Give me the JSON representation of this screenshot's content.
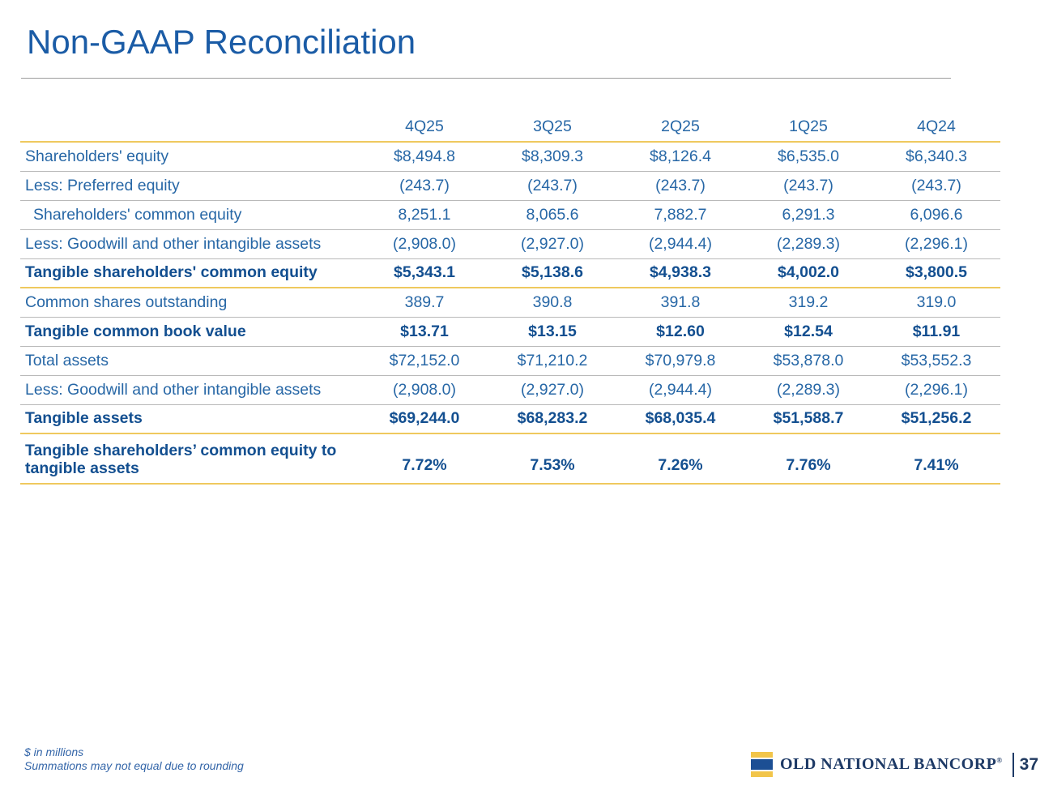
{
  "slide": {
    "title": "Non-GAAP Reconciliation",
    "page_number": "37",
    "footnote_line1": "$ in millions",
    "footnote_line2": "Summations may not equal due to rounding",
    "logo_text": "OLD NATIONAL BANCORP",
    "logo_reg_mark": "®"
  },
  "colors": {
    "title_blue": "#1b5ca6",
    "table_text_blue": "#2767a6",
    "table_bold_blue": "#134f90",
    "accent_gold_rule": "#efc95e",
    "gray_rule": "#b9b9b9",
    "brand_navy": "#1e3a66",
    "logo_gold": "#f2c54a",
    "logo_blue": "#1c4f94"
  },
  "chart_data": {
    "type": "table",
    "title": "Non-GAAP Reconciliation",
    "label_header": "",
    "columns": [
      "4Q25",
      "3Q25",
      "2Q25",
      "1Q25",
      "4Q24"
    ],
    "rows": [
      {
        "label": "Shareholders' equity",
        "values": [
          "$8,494.8",
          "$8,309.3",
          "$8,126.4",
          "$6,535.0",
          "$6,340.3"
        ],
        "bold": false,
        "indent": false,
        "rule": "gray",
        "tall": false
      },
      {
        "label": "Less: Preferred equity",
        "values": [
          "(243.7)",
          "(243.7)",
          "(243.7)",
          "(243.7)",
          "(243.7)"
        ],
        "bold": false,
        "indent": false,
        "rule": "gray",
        "tall": false
      },
      {
        "label": "Shareholders' common equity",
        "values": [
          "8,251.1",
          "8,065.6",
          "7,882.7",
          "6,291.3",
          "6,096.6"
        ],
        "bold": false,
        "indent": true,
        "rule": "gray",
        "tall": false
      },
      {
        "label": "Less: Goodwill and other intangible assets",
        "values": [
          "(2,908.0)",
          "(2,927.0)",
          "(2,944.4)",
          "(2,289.3)",
          "(2,296.1)"
        ],
        "bold": false,
        "indent": false,
        "rule": "gray",
        "tall": false
      },
      {
        "label": "Tangible shareholders' common equity",
        "values": [
          "$5,343.1",
          "$5,138.6",
          "$4,938.3",
          "$4,002.0",
          "$3,800.5"
        ],
        "bold": true,
        "indent": false,
        "rule": "yellow",
        "tall": false
      },
      {
        "label": "Common shares outstanding",
        "values": [
          "389.7",
          "390.8",
          "391.8",
          "319.2",
          "319.0"
        ],
        "bold": false,
        "indent": false,
        "rule": "gray",
        "tall": false
      },
      {
        "label": "Tangible common book value",
        "values": [
          "$13.71",
          "$13.15",
          "$12.60",
          "$12.54",
          "$11.91"
        ],
        "bold": true,
        "indent": false,
        "rule": "gray",
        "tall": false
      },
      {
        "label": "Total assets",
        "values": [
          "$72,152.0",
          "$71,210.2",
          "$70,979.8",
          "$53,878.0",
          "$53,552.3"
        ],
        "bold": false,
        "indent": false,
        "rule": "gray",
        "tall": false
      },
      {
        "label": "Less: Goodwill and other intangible assets",
        "values": [
          "(2,908.0)",
          "(2,927.0)",
          "(2,944.4)",
          "(2,289.3)",
          "(2,296.1)"
        ],
        "bold": false,
        "indent": false,
        "rule": "gray",
        "tall": false
      },
      {
        "label": "Tangible assets",
        "values": [
          "$69,244.0",
          "$68,283.2",
          "$68,035.4",
          "$51,588.7",
          "$51,256.2"
        ],
        "bold": true,
        "indent": false,
        "rule": "yellow",
        "tall": false
      },
      {
        "label": "Tangible shareholders’ common equity to tangible assets",
        "values": [
          "7.72%",
          "7.53%",
          "7.26%",
          "7.76%",
          "7.41%"
        ],
        "bold": true,
        "indent": false,
        "rule": "yellow",
        "tall": true
      }
    ]
  }
}
